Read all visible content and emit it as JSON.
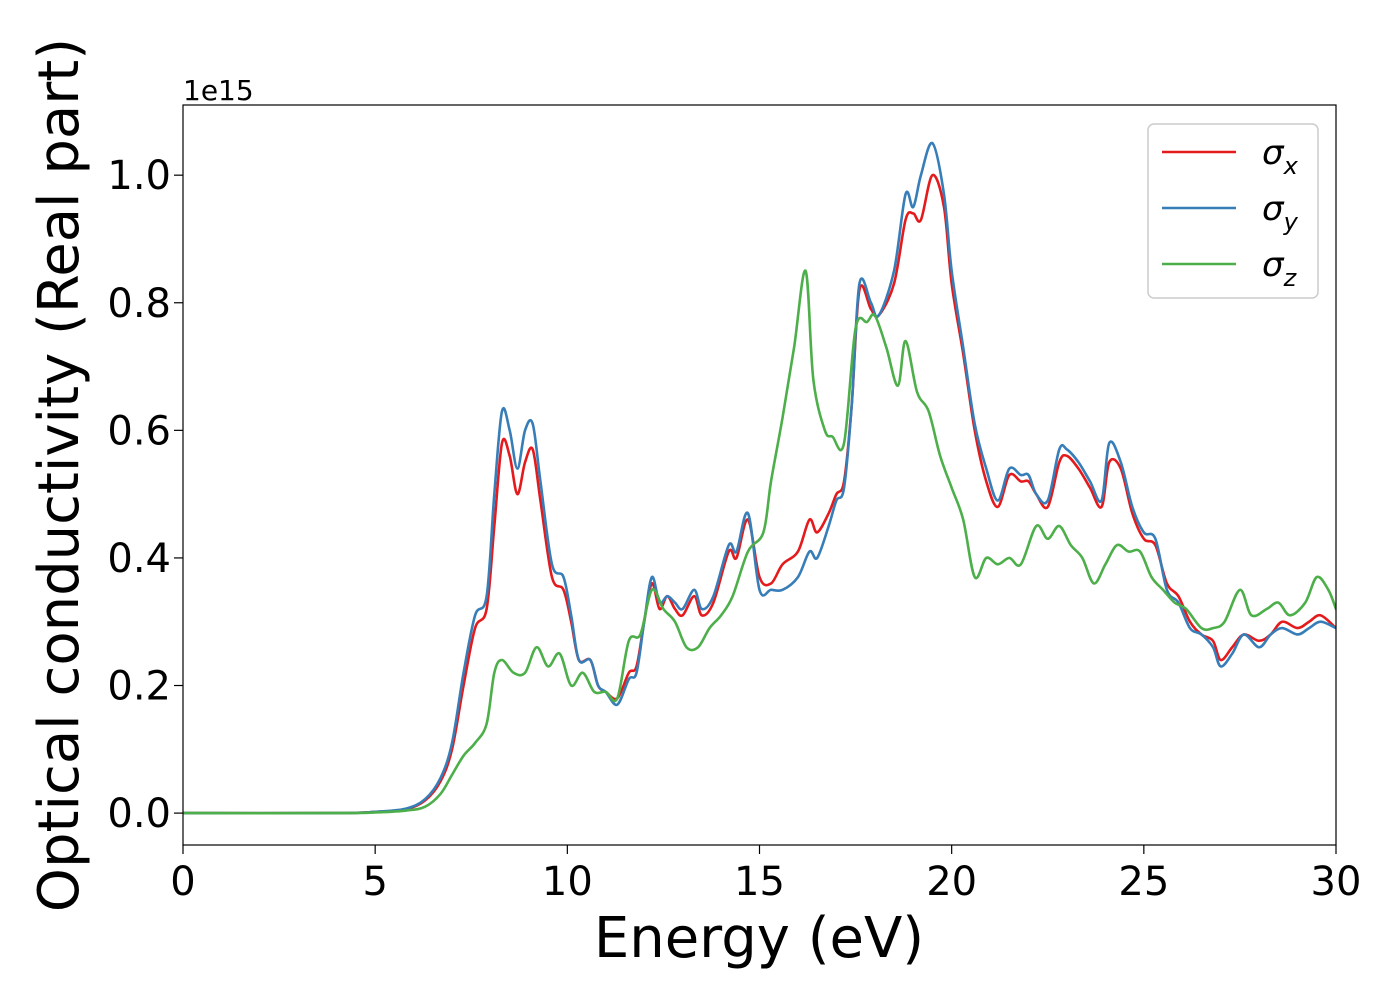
{
  "chart_data": {
    "type": "line",
    "title": "",
    "xlabel": "Energy (eV)",
    "ylabel": "Optical conductivity (Real part)",
    "y_offset_label": "1e15",
    "xlim": [
      0,
      30
    ],
    "ylim": [
      -0.05,
      1.11
    ],
    "x_ticks": [
      0,
      5,
      10,
      15,
      20,
      25,
      30
    ],
    "x_tick_labels": [
      "0",
      "5",
      "10",
      "15",
      "20",
      "25",
      "30"
    ],
    "y_ticks": [
      0.0,
      0.2,
      0.4,
      0.6,
      0.8,
      1.0
    ],
    "y_tick_labels": [
      "0.0",
      "0.2",
      "0.4",
      "0.6",
      "0.8",
      "1.0"
    ],
    "grid": false,
    "legend_position": "top-right",
    "series": [
      {
        "name": "σx",
        "legend_base": "σ",
        "legend_sub": "x",
        "color": "#e41a1c",
        "points": [
          [
            0,
            0
          ],
          [
            4,
            0
          ],
          [
            5,
            0.002
          ],
          [
            5.8,
            0.006
          ],
          [
            6.3,
            0.02
          ],
          [
            6.7,
            0.05
          ],
          [
            7.0,
            0.1
          ],
          [
            7.3,
            0.2
          ],
          [
            7.6,
            0.29
          ],
          [
            7.9,
            0.32
          ],
          [
            8.1,
            0.45
          ],
          [
            8.3,
            0.58
          ],
          [
            8.5,
            0.56
          ],
          [
            8.7,
            0.5
          ],
          [
            8.9,
            0.55
          ],
          [
            9.1,
            0.57
          ],
          [
            9.3,
            0.49
          ],
          [
            9.6,
            0.37
          ],
          [
            9.9,
            0.35
          ],
          [
            10.1,
            0.3
          ],
          [
            10.3,
            0.24
          ],
          [
            10.6,
            0.24
          ],
          [
            10.8,
            0.2
          ],
          [
            11.0,
            0.19
          ],
          [
            11.3,
            0.18
          ],
          [
            11.6,
            0.22
          ],
          [
            11.8,
            0.23
          ],
          [
            12.0,
            0.3
          ],
          [
            12.2,
            0.36
          ],
          [
            12.4,
            0.32
          ],
          [
            12.6,
            0.34
          ],
          [
            12.8,
            0.32
          ],
          [
            13.0,
            0.31
          ],
          [
            13.3,
            0.34
          ],
          [
            13.5,
            0.31
          ],
          [
            13.8,
            0.33
          ],
          [
            14.2,
            0.41
          ],
          [
            14.4,
            0.4
          ],
          [
            14.7,
            0.46
          ],
          [
            15.0,
            0.37
          ],
          [
            15.3,
            0.36
          ],
          [
            15.6,
            0.39
          ],
          [
            16.0,
            0.41
          ],
          [
            16.3,
            0.46
          ],
          [
            16.5,
            0.44
          ],
          [
            16.8,
            0.47
          ],
          [
            17.0,
            0.5
          ],
          [
            17.2,
            0.52
          ],
          [
            17.4,
            0.64
          ],
          [
            17.6,
            0.82
          ],
          [
            17.9,
            0.79
          ],
          [
            18.1,
            0.78
          ],
          [
            18.5,
            0.83
          ],
          [
            18.8,
            0.93
          ],
          [
            19.0,
            0.94
          ],
          [
            19.2,
            0.93
          ],
          [
            19.5,
            1.0
          ],
          [
            19.8,
            0.95
          ],
          [
            20.0,
            0.83
          ],
          [
            20.3,
            0.72
          ],
          [
            20.6,
            0.6
          ],
          [
            20.9,
            0.52
          ],
          [
            21.2,
            0.48
          ],
          [
            21.5,
            0.53
          ],
          [
            21.8,
            0.52
          ],
          [
            22.0,
            0.52
          ],
          [
            22.2,
            0.5
          ],
          [
            22.5,
            0.48
          ],
          [
            22.8,
            0.55
          ],
          [
            23.0,
            0.56
          ],
          [
            23.3,
            0.54
          ],
          [
            23.6,
            0.51
          ],
          [
            23.9,
            0.48
          ],
          [
            24.1,
            0.55
          ],
          [
            24.4,
            0.54
          ],
          [
            24.7,
            0.47
          ],
          [
            25.0,
            0.43
          ],
          [
            25.3,
            0.42
          ],
          [
            25.6,
            0.36
          ],
          [
            25.9,
            0.34
          ],
          [
            26.2,
            0.3
          ],
          [
            26.5,
            0.28
          ],
          [
            26.8,
            0.27
          ],
          [
            27.0,
            0.24
          ],
          [
            27.3,
            0.26
          ],
          [
            27.6,
            0.28
          ],
          [
            28.0,
            0.27
          ],
          [
            28.3,
            0.28
          ],
          [
            28.6,
            0.3
          ],
          [
            29.0,
            0.29
          ],
          [
            29.3,
            0.3
          ],
          [
            29.6,
            0.31
          ],
          [
            30.0,
            0.29
          ]
        ]
      },
      {
        "name": "σy",
        "legend_base": "σ",
        "legend_sub": "y",
        "color": "#377eb8",
        "points": [
          [
            0,
            0
          ],
          [
            4,
            0
          ],
          [
            5,
            0.002
          ],
          [
            5.8,
            0.007
          ],
          [
            6.3,
            0.022
          ],
          [
            6.7,
            0.055
          ],
          [
            7.0,
            0.11
          ],
          [
            7.3,
            0.22
          ],
          [
            7.6,
            0.31
          ],
          [
            7.9,
            0.34
          ],
          [
            8.1,
            0.5
          ],
          [
            8.3,
            0.63
          ],
          [
            8.5,
            0.6
          ],
          [
            8.7,
            0.54
          ],
          [
            8.9,
            0.6
          ],
          [
            9.1,
            0.61
          ],
          [
            9.3,
            0.52
          ],
          [
            9.6,
            0.39
          ],
          [
            9.9,
            0.37
          ],
          [
            10.1,
            0.31
          ],
          [
            10.3,
            0.24
          ],
          [
            10.6,
            0.24
          ],
          [
            10.8,
            0.2
          ],
          [
            11.0,
            0.19
          ],
          [
            11.3,
            0.17
          ],
          [
            11.6,
            0.21
          ],
          [
            11.8,
            0.22
          ],
          [
            12.0,
            0.3
          ],
          [
            12.2,
            0.37
          ],
          [
            12.4,
            0.33
          ],
          [
            12.6,
            0.34
          ],
          [
            12.8,
            0.33
          ],
          [
            13.0,
            0.32
          ],
          [
            13.3,
            0.35
          ],
          [
            13.5,
            0.32
          ],
          [
            13.8,
            0.34
          ],
          [
            14.2,
            0.42
          ],
          [
            14.4,
            0.41
          ],
          [
            14.7,
            0.47
          ],
          [
            15.0,
            0.35
          ],
          [
            15.3,
            0.35
          ],
          [
            15.6,
            0.35
          ],
          [
            16.0,
            0.37
          ],
          [
            16.3,
            0.41
          ],
          [
            16.5,
            0.4
          ],
          [
            16.8,
            0.45
          ],
          [
            17.0,
            0.49
          ],
          [
            17.2,
            0.51
          ],
          [
            17.4,
            0.64
          ],
          [
            17.6,
            0.83
          ],
          [
            17.9,
            0.8
          ],
          [
            18.1,
            0.78
          ],
          [
            18.5,
            0.85
          ],
          [
            18.8,
            0.97
          ],
          [
            19.0,
            0.95
          ],
          [
            19.2,
            1.0
          ],
          [
            19.5,
            1.05
          ],
          [
            19.8,
            0.97
          ],
          [
            20.0,
            0.85
          ],
          [
            20.3,
            0.73
          ],
          [
            20.6,
            0.61
          ],
          [
            20.9,
            0.54
          ],
          [
            21.2,
            0.49
          ],
          [
            21.5,
            0.54
          ],
          [
            21.8,
            0.53
          ],
          [
            22.0,
            0.53
          ],
          [
            22.2,
            0.5
          ],
          [
            22.5,
            0.49
          ],
          [
            22.8,
            0.57
          ],
          [
            23.0,
            0.57
          ],
          [
            23.3,
            0.55
          ],
          [
            23.6,
            0.52
          ],
          [
            23.9,
            0.49
          ],
          [
            24.1,
            0.58
          ],
          [
            24.4,
            0.55
          ],
          [
            24.7,
            0.48
          ],
          [
            25.0,
            0.44
          ],
          [
            25.3,
            0.43
          ],
          [
            25.6,
            0.35
          ],
          [
            25.9,
            0.33
          ],
          [
            26.2,
            0.29
          ],
          [
            26.5,
            0.28
          ],
          [
            26.8,
            0.26
          ],
          [
            27.0,
            0.23
          ],
          [
            27.3,
            0.25
          ],
          [
            27.6,
            0.28
          ],
          [
            28.0,
            0.26
          ],
          [
            28.3,
            0.28
          ],
          [
            28.6,
            0.29
          ],
          [
            29.0,
            0.28
          ],
          [
            29.3,
            0.29
          ],
          [
            29.6,
            0.3
          ],
          [
            30.0,
            0.29
          ]
        ]
      },
      {
        "name": "σz",
        "legend_base": "σ",
        "legend_sub": "z",
        "color": "#4daf4a",
        "points": [
          [
            0,
            0
          ],
          [
            4,
            0
          ],
          [
            5,
            0.001
          ],
          [
            5.8,
            0.004
          ],
          [
            6.3,
            0.01
          ],
          [
            6.7,
            0.03
          ],
          [
            7.0,
            0.06
          ],
          [
            7.3,
            0.09
          ],
          [
            7.6,
            0.11
          ],
          [
            7.9,
            0.14
          ],
          [
            8.1,
            0.22
          ],
          [
            8.3,
            0.24
          ],
          [
            8.6,
            0.22
          ],
          [
            8.9,
            0.22
          ],
          [
            9.2,
            0.26
          ],
          [
            9.5,
            0.23
          ],
          [
            9.8,
            0.25
          ],
          [
            10.1,
            0.2
          ],
          [
            10.4,
            0.22
          ],
          [
            10.7,
            0.19
          ],
          [
            11.0,
            0.19
          ],
          [
            11.3,
            0.18
          ],
          [
            11.6,
            0.27
          ],
          [
            11.9,
            0.28
          ],
          [
            12.2,
            0.35
          ],
          [
            12.5,
            0.32
          ],
          [
            12.8,
            0.3
          ],
          [
            13.1,
            0.26
          ],
          [
            13.4,
            0.26
          ],
          [
            13.7,
            0.29
          ],
          [
            14.0,
            0.31
          ],
          [
            14.3,
            0.34
          ],
          [
            14.7,
            0.41
          ],
          [
            15.1,
            0.44
          ],
          [
            15.3,
            0.52
          ],
          [
            15.6,
            0.62
          ],
          [
            15.9,
            0.73
          ],
          [
            16.2,
            0.85
          ],
          [
            16.4,
            0.68
          ],
          [
            16.7,
            0.6
          ],
          [
            16.9,
            0.59
          ],
          [
            17.2,
            0.58
          ],
          [
            17.5,
            0.76
          ],
          [
            17.8,
            0.77
          ],
          [
            18.0,
            0.78
          ],
          [
            18.3,
            0.73
          ],
          [
            18.6,
            0.67
          ],
          [
            18.8,
            0.74
          ],
          [
            19.1,
            0.66
          ],
          [
            19.4,
            0.63
          ],
          [
            19.7,
            0.56
          ],
          [
            20.0,
            0.51
          ],
          [
            20.3,
            0.46
          ],
          [
            20.6,
            0.37
          ],
          [
            20.9,
            0.4
          ],
          [
            21.2,
            0.39
          ],
          [
            21.5,
            0.4
          ],
          [
            21.8,
            0.39
          ],
          [
            22.2,
            0.45
          ],
          [
            22.5,
            0.43
          ],
          [
            22.8,
            0.45
          ],
          [
            23.1,
            0.42
          ],
          [
            23.4,
            0.4
          ],
          [
            23.7,
            0.36
          ],
          [
            24.0,
            0.39
          ],
          [
            24.3,
            0.42
          ],
          [
            24.6,
            0.41
          ],
          [
            24.9,
            0.41
          ],
          [
            25.2,
            0.37
          ],
          [
            25.5,
            0.35
          ],
          [
            25.8,
            0.33
          ],
          [
            26.1,
            0.32
          ],
          [
            26.5,
            0.29
          ],
          [
            26.8,
            0.29
          ],
          [
            27.1,
            0.3
          ],
          [
            27.5,
            0.35
          ],
          [
            27.8,
            0.31
          ],
          [
            28.2,
            0.32
          ],
          [
            28.5,
            0.33
          ],
          [
            28.8,
            0.31
          ],
          [
            29.2,
            0.33
          ],
          [
            29.5,
            0.37
          ],
          [
            29.8,
            0.35
          ],
          [
            30.0,
            0.32
          ]
        ]
      }
    ]
  }
}
